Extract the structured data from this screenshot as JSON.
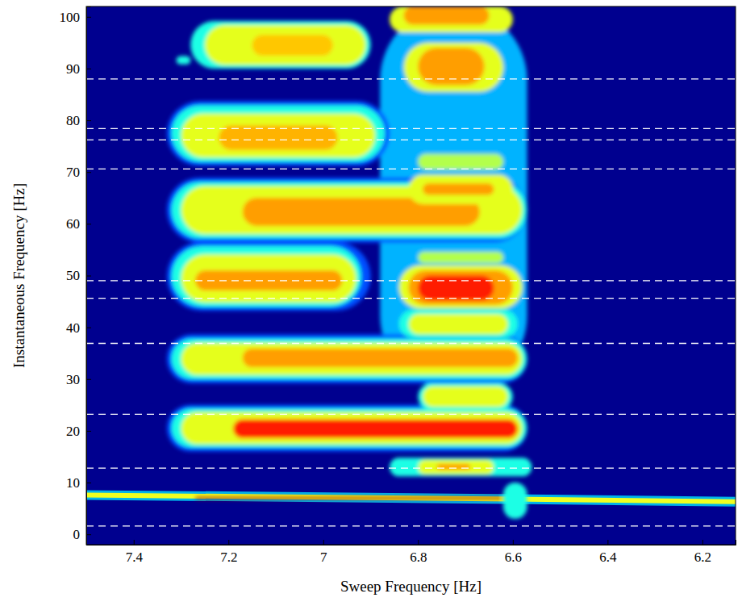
{
  "chart_data": {
    "type": "heatmap",
    "x_label": "Sweep Frequency [Hz]",
    "y_label": "Instantaneous Frequency [Hz]",
    "xlim": [
      7.5,
      6.13
    ],
    "xticks": [
      7.4,
      7.2,
      7,
      6.8,
      6.6,
      6.4,
      6.2
    ],
    "ylim": [
      -2,
      102
    ],
    "yticks": [
      0,
      10,
      20,
      30,
      40,
      50,
      60,
      70,
      80,
      90,
      100
    ],
    "zlim": [
      0,
      1
    ],
    "x": [
      7.5,
      6.6,
      6.13
    ],
    "series": [
      {
        "type": "line",
        "color": "#f0ff20",
        "values": [
          7.6,
          6.8,
          6.3
        ]
      }
    ],
    "regions": [
      {
        "x0": 6.88,
        "x1": 6.57,
        "y0": 28,
        "y1": 102,
        "value": 0.3
      },
      {
        "x0": 7.33,
        "x1": 6.57,
        "y0": 16.0,
        "y1": 25.0,
        "value": 0.2
      },
      {
        "x0": 7.32,
        "x1": 6.57,
        "y0": 16.8,
        "y1": 24.3,
        "value": 0.4
      },
      {
        "x0": 7.3,
        "x1": 6.58,
        "y0": 17.4,
        "y1": 23.6,
        "value": 0.6
      },
      {
        "x0": 7.19,
        "x1": 6.59,
        "y0": 18.6,
        "y1": 22.2,
        "value": 0.85
      },
      {
        "x0": 7.33,
        "x1": 6.57,
        "y0": 29.2,
        "y1": 38.6,
        "value": 0.2
      },
      {
        "x0": 7.32,
        "x1": 6.57,
        "y0": 30.0,
        "y1": 37.8,
        "value": 0.4
      },
      {
        "x0": 7.3,
        "x1": 6.58,
        "y0": 30.8,
        "y1": 37.0,
        "value": 0.6
      },
      {
        "x0": 7.17,
        "x1": 6.59,
        "y0": 32.3,
        "y1": 35.9,
        "value": 0.72
      },
      {
        "x0": 7.33,
        "x1": 6.9,
        "y0": 43.2,
        "y1": 56.5,
        "value": 0.2
      },
      {
        "x0": 7.32,
        "x1": 6.92,
        "y0": 44.0,
        "y1": 55.7,
        "value": 0.4
      },
      {
        "x0": 7.3,
        "x1": 6.93,
        "y0": 44.8,
        "y1": 54.1,
        "value": 0.6
      },
      {
        "x0": 7.27,
        "x1": 6.96,
        "y0": 47.1,
        "y1": 51.0,
        "value": 0.72
      },
      {
        "x0": 7.33,
        "x1": 6.57,
        "y0": 56.4,
        "y1": 68.9,
        "value": 0.2
      },
      {
        "x0": 7.32,
        "x1": 6.57,
        "y0": 57.2,
        "y1": 68.1,
        "value": 0.4
      },
      {
        "x0": 7.3,
        "x1": 6.58,
        "y0": 58.0,
        "y1": 67.3,
        "value": 0.6
      },
      {
        "x0": 7.17,
        "x1": 6.67,
        "y0": 59.6,
        "y1": 65.0,
        "value": 0.72
      },
      {
        "x0": 7.33,
        "x1": 6.86,
        "y0": 71.2,
        "y1": 83.7,
        "value": 0.2
      },
      {
        "x0": 7.32,
        "x1": 6.87,
        "y0": 72.0,
        "y1": 82.9,
        "value": 0.4
      },
      {
        "x0": 7.3,
        "x1": 6.89,
        "y0": 72.8,
        "y1": 81.3,
        "value": 0.6
      },
      {
        "x0": 7.22,
        "x1": 6.97,
        "y0": 74.3,
        "y1": 79.0,
        "value": 0.7
      },
      {
        "x0": 7.28,
        "x1": 6.9,
        "y0": 90.0,
        "y1": 99.2,
        "value": 0.4
      },
      {
        "x0": 7.25,
        "x1": 6.91,
        "y0": 90.7,
        "y1": 98.4,
        "value": 0.6
      },
      {
        "x0": 7.15,
        "x1": 6.98,
        "y0": 92.5,
        "y1": 96.5,
        "value": 0.68
      },
      {
        "x0": 7.31,
        "x1": 7.28,
        "y0": 90.8,
        "y1": 92.4,
        "value": 0.4
      },
      {
        "x0": 6.86,
        "x1": 6.6,
        "y0": 97.0,
        "y1": 102,
        "value": 0.6
      },
      {
        "x0": 6.83,
        "x1": 6.65,
        "y0": 98.5,
        "y1": 102,
        "value": 0.72
      },
      {
        "x0": 6.86,
        "x1": 6.56,
        "y0": 11.2,
        "y1": 14.8,
        "value": 0.4
      },
      {
        "x0": 6.8,
        "x1": 6.64,
        "y0": 11.6,
        "y1": 14.4,
        "value": 0.6
      },
      {
        "x0": 6.76,
        "x1": 6.69,
        "y0": 12.5,
        "y1": 13.6,
        "value": 0.72
      },
      {
        "x0": 6.8,
        "x1": 6.6,
        "y0": 24.0,
        "y1": 29.2,
        "value": 0.4
      },
      {
        "x0": 6.79,
        "x1": 6.61,
        "y0": 24.6,
        "y1": 28.6,
        "value": 0.6
      },
      {
        "x0": 6.84,
        "x1": 6.59,
        "y0": 38.0,
        "y1": 43.4,
        "value": 0.4
      },
      {
        "x0": 6.82,
        "x1": 6.61,
        "y0": 38.6,
        "y1": 42.6,
        "value": 0.6
      },
      {
        "x0": 6.84,
        "x1": 6.58,
        "y0": 43.6,
        "y1": 52.0,
        "value": 0.6
      },
      {
        "x0": 6.82,
        "x1": 6.6,
        "y0": 44.4,
        "y1": 51.0,
        "value": 0.72
      },
      {
        "x0": 6.8,
        "x1": 6.64,
        "y0": 45.2,
        "y1": 50.0,
        "value": 0.85
      },
      {
        "x0": 6.8,
        "x1": 6.62,
        "y0": 52.4,
        "y1": 54.6,
        "value": 0.55
      },
      {
        "x0": 6.82,
        "x1": 6.6,
        "y0": 63.8,
        "y1": 69.5,
        "value": 0.6
      },
      {
        "x0": 6.79,
        "x1": 6.64,
        "y0": 65.6,
        "y1": 67.8,
        "value": 0.72
      },
      {
        "x0": 6.8,
        "x1": 6.62,
        "y0": 70.5,
        "y1": 73.5,
        "value": 0.55
      },
      {
        "x0": 6.83,
        "x1": 6.62,
        "y0": 85.5,
        "y1": 95.0,
        "value": 0.6
      },
      {
        "x0": 6.8,
        "x1": 6.66,
        "y0": 86.8,
        "y1": 94.0,
        "value": 0.72
      },
      {
        "x0": 6.62,
        "x1": 6.57,
        "y0": 3.0,
        "y1": 10.0,
        "value": 0.4
      },
      {
        "x0": 7.27,
        "x1": 6.62,
        "y0": 6.8,
        "y1": 7.2,
        "value": 0.97
      }
    ],
    "reference_lines": {
      "values": [
        88,
        78.4,
        76.2,
        70.6,
        49,
        45.6,
        36.9,
        23.2,
        12.8,
        1.6
      ],
      "color": "#ffffff",
      "line_style": "dashed"
    }
  }
}
